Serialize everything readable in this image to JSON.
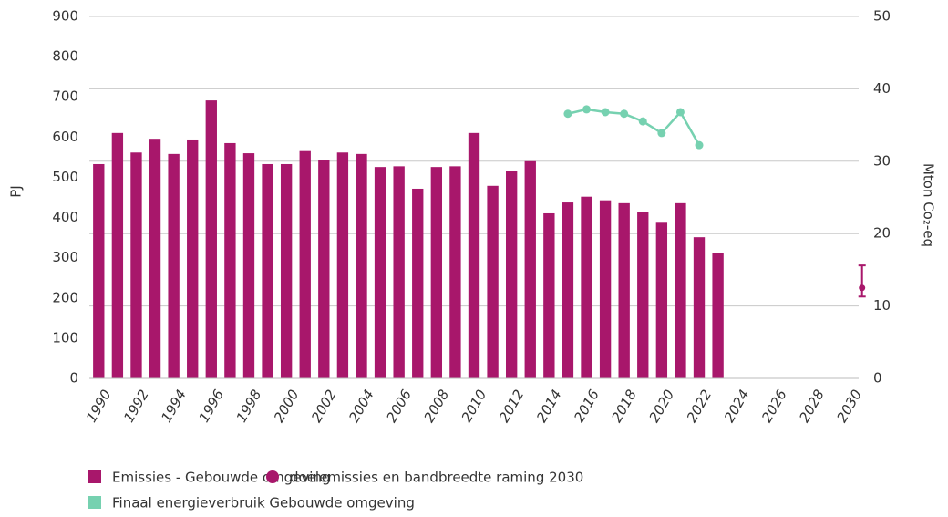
{
  "chart_data": {
    "type": "bar",
    "y_label": "PJ",
    "y2_label": "Mton Co₂-eq",
    "categories": [
      "1990",
      null,
      "1992",
      null,
      "1994",
      null,
      "1996",
      null,
      "1998",
      null,
      "2000",
      null,
      "2002",
      null,
      "2004",
      null,
      "2006",
      null,
      "2008",
      null,
      "2010",
      null,
      "2012",
      null,
      "2014",
      null,
      "2016",
      null,
      "2018",
      null,
      "2020",
      null,
      "2022",
      null,
      "2024",
      null,
      "2026",
      null,
      "2028",
      null,
      "2030"
    ],
    "ylim": [
      0,
      900
    ],
    "yticks": [
      0,
      100,
      200,
      300,
      400,
      500,
      600,
      700,
      800,
      900
    ],
    "y2lim": [
      0,
      50
    ],
    "y2ticks": [
      0,
      10,
      20,
      30,
      40,
      50
    ],
    "grid": true,
    "series": [
      {
        "name": "Emissies - Gebouwde omgeving",
        "type": "bar",
        "axis": "y2",
        "color": "#a8176b",
        "values": [
          29.6,
          33.9,
          31.2,
          33.1,
          31.0,
          33.0,
          38.4,
          32.5,
          31.1,
          29.6,
          29.6,
          31.4,
          30.1,
          31.2,
          31.0,
          29.2,
          29.3,
          26.2,
          29.2,
          29.3,
          33.9,
          26.6,
          28.7,
          30.0,
          22.8,
          24.3,
          25.1,
          24.6,
          24.2,
          23.0,
          21.5,
          24.2,
          19.5,
          17.3,
          null,
          null,
          null,
          null,
          null,
          null,
          null
        ]
      },
      {
        "name": "doelemissies  en bandbreedte raming 2030",
        "type": "errorbar",
        "axis": "y2",
        "color": "#a8176b",
        "values": [
          null,
          null,
          null,
          null,
          null,
          null,
          null,
          null,
          null,
          null,
          null,
          null,
          null,
          null,
          null,
          null,
          null,
          null,
          null,
          null,
          null,
          null,
          null,
          null,
          null,
          null,
          null,
          null,
          null,
          null,
          null,
          null,
          null,
          null,
          null,
          null,
          null,
          null,
          null,
          null,
          12.5
        ],
        "low": [
          null,
          null,
          null,
          null,
          null,
          null,
          null,
          null,
          null,
          null,
          null,
          null,
          null,
          null,
          null,
          null,
          null,
          null,
          null,
          null,
          null,
          null,
          null,
          null,
          null,
          null,
          null,
          null,
          null,
          null,
          null,
          null,
          null,
          null,
          null,
          null,
          null,
          null,
          null,
          null,
          11.3
        ],
        "high": [
          null,
          null,
          null,
          null,
          null,
          null,
          null,
          null,
          null,
          null,
          null,
          null,
          null,
          null,
          null,
          null,
          null,
          null,
          null,
          null,
          null,
          null,
          null,
          null,
          null,
          null,
          null,
          null,
          null,
          null,
          null,
          null,
          null,
          null,
          null,
          null,
          null,
          null,
          null,
          null,
          15.6
        ]
      },
      {
        "name": "Finaal energieverbruik Gebouwde omgeving",
        "type": "line",
        "axis": "y",
        "color": "#76d1b0",
        "values": [
          null,
          null,
          null,
          null,
          null,
          null,
          null,
          null,
          null,
          null,
          null,
          null,
          null,
          null,
          null,
          null,
          null,
          null,
          null,
          null,
          null,
          null,
          null,
          null,
          null,
          658,
          669,
          662,
          658,
          639,
          610,
          662,
          580,
          null,
          null,
          null,
          null,
          null,
          null,
          null,
          null
        ]
      }
    ]
  }
}
